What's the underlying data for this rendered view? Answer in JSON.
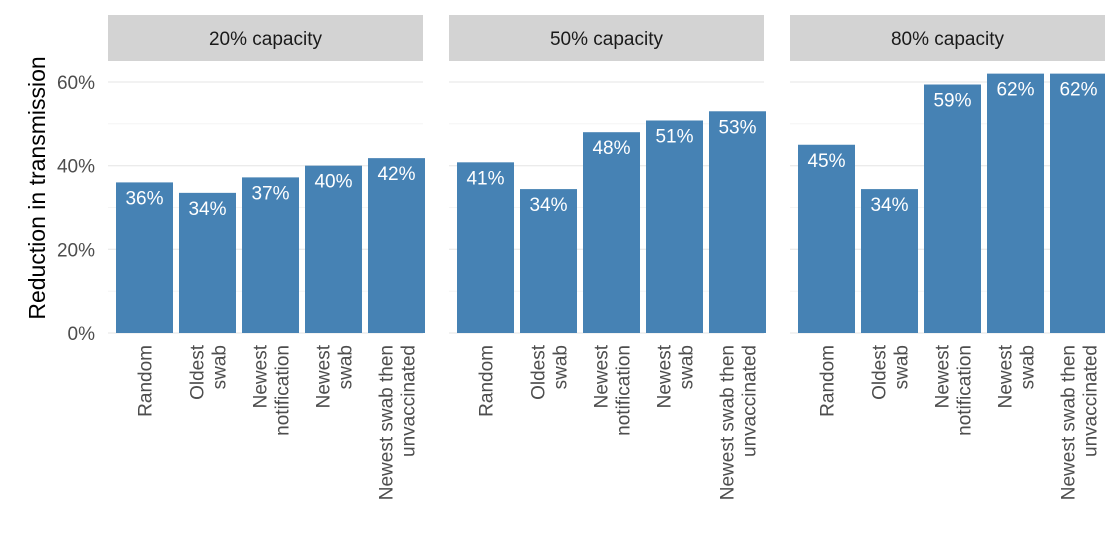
{
  "chart_data": {
    "type": "bar",
    "ylabel": "Reduction in transmission",
    "ylim": [
      0,
      0.65
    ],
    "y_ticks": [
      0,
      0.2,
      0.4,
      0.6
    ],
    "y_tick_labels": [
      "0%",
      "20%",
      "40%",
      "60%"
    ],
    "grid": true,
    "bar_color": "#4682B4",
    "strip_color": "#D3D3D3",
    "categories": [
      [
        "Random"
      ],
      [
        "Oldest",
        "swab"
      ],
      [
        "Newest",
        "notification"
      ],
      [
        "Newest",
        "swab"
      ],
      [
        "Newest swab then",
        "unvaccinated"
      ]
    ],
    "panels": [
      {
        "title": "20% capacity",
        "values": [
          0.36,
          0.335,
          0.372,
          0.4,
          0.418
        ],
        "labels": [
          "36%",
          "34%",
          "37%",
          "40%",
          "42%"
        ]
      },
      {
        "title": "50% capacity",
        "values": [
          0.408,
          0.344,
          0.48,
          0.508,
          0.53
        ],
        "labels": [
          "41%",
          "34%",
          "48%",
          "51%",
          "53%"
        ]
      },
      {
        "title": "80% capacity",
        "values": [
          0.45,
          0.344,
          0.594,
          0.62,
          0.62
        ],
        "labels": [
          "45%",
          "34%",
          "59%",
          "62%",
          "62%"
        ]
      }
    ]
  }
}
